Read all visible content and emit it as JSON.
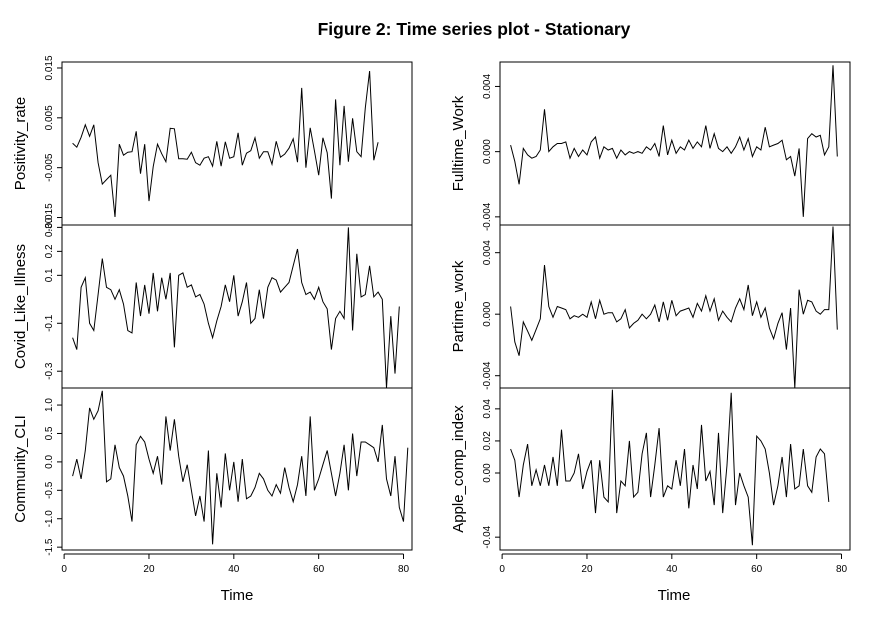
{
  "title": "Figure 2: Time series plot - Stationary",
  "xlabel": "Time",
  "x_ticks": [
    0,
    20,
    40,
    60,
    80
  ],
  "chart_data": [
    {
      "type": "line",
      "panel": "left-1",
      "series_name": "Positivity_rate",
      "ylabel": "Positivity_rate",
      "ylim": [
        -0.0165,
        0.0162
      ],
      "yticks": [
        -0.015,
        -0.005,
        0.005,
        0.015
      ],
      "yticklabels": [
        "-0.015",
        "-0.005",
        "0.005",
        "0.015"
      ],
      "x_start": 2,
      "values": [
        -0.0001,
        -0.0009,
        0.0011,
        0.0036,
        0.0013,
        0.0036,
        -0.004,
        -0.0083,
        -0.0074,
        -0.0065,
        -0.0149,
        -0.0003,
        -0.0025,
        -0.0019,
        -0.0018,
        0.0023,
        -0.0062,
        -0.0003,
        -0.0117,
        -0.0048,
        -0.0003,
        -0.0022,
        -0.0038,
        0.0029,
        0.0028,
        -0.0032,
        -0.0032,
        -0.0033,
        -0.0019,
        -0.004,
        -0.0045,
        -0.0031,
        -0.0028,
        -0.0047,
        0.0003,
        -0.0047,
        0.0002,
        -0.0031,
        -0.0028,
        0.002,
        -0.0045,
        -0.0021,
        -0.0016,
        0.001,
        -0.0031,
        -0.0018,
        -0.0018,
        -0.0043,
        0.0003,
        -0.0029,
        -0.0023,
        -0.0011,
        0.0008,
        -0.0039,
        0.011,
        -0.005,
        0.003,
        -0.0016,
        -0.0065,
        0.001,
        -0.002,
        -0.0112,
        0.0087,
        -0.0045,
        0.0074,
        -0.0038,
        0.0049,
        -0.0018,
        -0.0028,
        0.007,
        0.0144,
        -0.0035,
        0.0001
      ]
    },
    {
      "type": "line",
      "panel": "left-2",
      "series_name": "Covid_Like_Illness",
      "ylabel": "Covid_Like_Illness",
      "ylim": [
        -0.37,
        0.31
      ],
      "yticks": [
        -0.3,
        -0.1,
        0.1,
        0.2,
        0.3
      ],
      "yticklabels": [
        "-0.3",
        "-0.1",
        "0.1",
        "0.2",
        "0.30"
      ],
      "x_start": 2,
      "values": [
        -0.16,
        -0.21,
        0.05,
        0.09,
        -0.1,
        -0.13,
        0.02,
        0.17,
        0.05,
        0.04,
        0.0,
        0.04,
        -0.02,
        -0.13,
        -0.14,
        0.07,
        -0.07,
        0.06,
        -0.06,
        0.11,
        -0.05,
        0.09,
        0.0,
        0.11,
        -0.2,
        0.1,
        0.11,
        0.05,
        0.06,
        0.01,
        0.02,
        -0.02,
        -0.1,
        -0.16,
        -0.09,
        -0.03,
        0.06,
        -0.01,
        0.1,
        -0.07,
        -0.01,
        0.07,
        -0.1,
        -0.08,
        0.04,
        -0.08,
        0.05,
        0.09,
        0.08,
        0.03,
        0.05,
        0.07,
        0.14,
        0.21,
        0.07,
        0.02,
        0.03,
        0.0,
        0.05,
        -0.01,
        -0.04,
        -0.21,
        -0.08,
        -0.05,
        -0.08,
        0.3,
        -0.13,
        0.19,
        0.01,
        0.02,
        0.14,
        0.01,
        0.03,
        0.0,
        -0.37,
        -0.07,
        -0.31,
        -0.03
      ]
    },
    {
      "type": "line",
      "panel": "left-3",
      "series_name": "Community_CLI",
      "ylabel": "Community_CLI",
      "ylim": [
        -1.55,
        1.3
      ],
      "yticks": [
        -1.5,
        -1.0,
        -0.5,
        0.0,
        0.5,
        1.0
      ],
      "yticklabels": [
        "-1.5",
        "-1.0",
        "-0.5",
        "0.0",
        "0.5",
        "1.0"
      ],
      "x_start": 2,
      "values": [
        -0.25,
        0.05,
        -0.3,
        0.2,
        0.95,
        0.75,
        0.9,
        1.25,
        -0.35,
        -0.3,
        0.3,
        -0.1,
        -0.25,
        -0.6,
        -1.05,
        0.3,
        0.45,
        0.35,
        0.05,
        -0.2,
        0.1,
        -0.4,
        0.8,
        0.2,
        0.75,
        0.1,
        -0.35,
        -0.05,
        -0.5,
        -0.95,
        -0.6,
        -1.05,
        0.2,
        -1.45,
        -0.2,
        -0.8,
        0.15,
        -0.5,
        0.0,
        -0.7,
        0.05,
        -0.65,
        -0.6,
        -0.45,
        -0.2,
        -0.3,
        -0.5,
        -0.6,
        -0.4,
        -0.55,
        -0.1,
        -0.45,
        -0.7,
        -0.4,
        0.1,
        -0.6,
        0.8,
        -0.5,
        -0.3,
        -0.05,
        0.2,
        -0.2,
        -0.6,
        -0.2,
        0.3,
        -0.5,
        0.5,
        -0.25,
        0.35,
        0.35,
        0.3,
        0.25,
        0.0,
        0.65,
        -0.3,
        -0.6,
        0.1,
        -0.8,
        -1.05,
        0.25
      ]
    },
    {
      "type": "line",
      "panel": "right-1",
      "series_name": "Fulltime_Work",
      "ylabel": "Fulltime_Work",
      "ylim": [
        -0.0045,
        0.0055
      ],
      "yticks": [
        -0.004,
        0.0,
        0.004
      ],
      "yticklabels": [
        "-0.004",
        "0.000",
        "0.004"
      ],
      "x_start": 2,
      "values": [
        0.0004,
        -0.0006,
        -0.002,
        0.0002,
        -0.0002,
        -0.0004,
        -0.0003,
        0.0001,
        0.0026,
        0.0,
        0.0003,
        0.0005,
        0.0005,
        0.0006,
        -0.0004,
        0.0002,
        -0.0003,
        0.0001,
        -0.0002,
        0.0006,
        0.0009,
        -0.0004,
        0.0003,
        0.0001,
        0.0002,
        -0.0004,
        0.0001,
        -0.0002,
        0.0,
        -0.0001,
        0.0,
        -0.0001,
        0.0003,
        0.0001,
        0.0005,
        -0.0003,
        0.0016,
        -0.0002,
        0.0007,
        -0.0001,
        0.0003,
        0.0001,
        0.0007,
        0.0002,
        0.0006,
        0.0003,
        0.0016,
        0.0002,
        0.0011,
        0.0002,
        0.0,
        0.0003,
        -0.0001,
        0.0003,
        0.0009,
        0.0001,
        0.0008,
        -0.0003,
        0.0003,
        0.0001,
        0.0015,
        0.0003,
        0.0004,
        0.0005,
        0.0007,
        -0.0005,
        -0.0003,
        -0.0015,
        0.0002,
        -0.004,
        0.0008,
        0.0011,
        0.0009,
        0.001,
        -0.0002,
        0.0003,
        0.0053,
        -0.0003
      ]
    },
    {
      "type": "line",
      "panel": "right-2",
      "series_name": "Partime_work",
      "ylabel": "Partime_work",
      "ylim": [
        -0.0048,
        0.0058
      ],
      "yticks": [
        -0.004,
        0.0,
        0.004
      ],
      "yticklabels": [
        "-0.004",
        "0.000",
        "0.004"
      ],
      "x_start": 2,
      "values": [
        0.0005,
        -0.0018,
        -0.0027,
        -0.0005,
        -0.0011,
        -0.0017,
        -0.001,
        -0.0003,
        0.0032,
        0.0005,
        -0.0002,
        0.0005,
        0.0004,
        0.0003,
        -0.0003,
        -0.0001,
        -0.0002,
        0.0,
        -0.0002,
        0.0008,
        -0.0003,
        0.0009,
        0.0,
        0.0001,
        0.0001,
        -0.0005,
        -0.0003,
        0.0003,
        -0.0009,
        -0.0006,
        -0.0004,
        0.0,
        -0.0003,
        0.0,
        0.0006,
        -0.0005,
        0.0008,
        -0.0004,
        0.0009,
        -0.0001,
        0.0002,
        0.0003,
        0.0004,
        -0.0002,
        0.0007,
        0.0002,
        0.0012,
        0.0002,
        0.001,
        -0.0004,
        0.0002,
        -0.0002,
        -0.0005,
        0.0004,
        0.001,
        0.0003,
        0.0019,
        -0.0001,
        0.0008,
        -0.0002,
        0.0004,
        -0.0009,
        -0.0016,
        -0.0006,
        0.0001,
        -0.0023,
        0.0004,
        -0.0048,
        0.0016,
        0.0,
        0.0009,
        0.0008,
        0.0002,
        0.0,
        0.0003,
        0.0003,
        0.0057,
        -0.001
      ]
    },
    {
      "type": "line",
      "panel": "right-3",
      "series_name": "Apple_comp_index",
      "ylabel": "Apple_comp_index",
      "ylim": [
        -0.048,
        0.053
      ],
      "yticks": [
        -0.04,
        0.0,
        0.02,
        0.04
      ],
      "yticklabels": [
        "-0.04",
        "0.00",
        "0.02",
        "0.04"
      ],
      "x_start": 2,
      "values": [
        0.015,
        0.008,
        -0.015,
        0.005,
        0.018,
        -0.008,
        0.002,
        -0.008,
        0.005,
        -0.008,
        0.01,
        -0.008,
        0.027,
        -0.005,
        -0.005,
        0.0,
        0.012,
        -0.01,
        0.001,
        0.008,
        -0.025,
        0.008,
        -0.015,
        -0.018,
        0.052,
        -0.025,
        -0.005,
        -0.008,
        0.02,
        -0.015,
        -0.012,
        0.012,
        0.025,
        -0.015,
        0.005,
        0.028,
        -0.015,
        -0.008,
        -0.01,
        0.008,
        -0.008,
        0.015,
        -0.022,
        0.005,
        -0.01,
        0.03,
        -0.005,
        0.001,
        -0.02,
        0.025,
        -0.025,
        0.005,
        0.05,
        -0.02,
        0.0,
        -0.008,
        -0.015,
        -0.045,
        0.023,
        0.02,
        0.015,
        0.0,
        -0.02,
        -0.008,
        0.01,
        -0.015,
        0.018,
        -0.01,
        -0.008,
        0.015,
        -0.008,
        -0.012,
        0.01,
        0.015,
        0.012,
        -0.018
      ]
    }
  ]
}
